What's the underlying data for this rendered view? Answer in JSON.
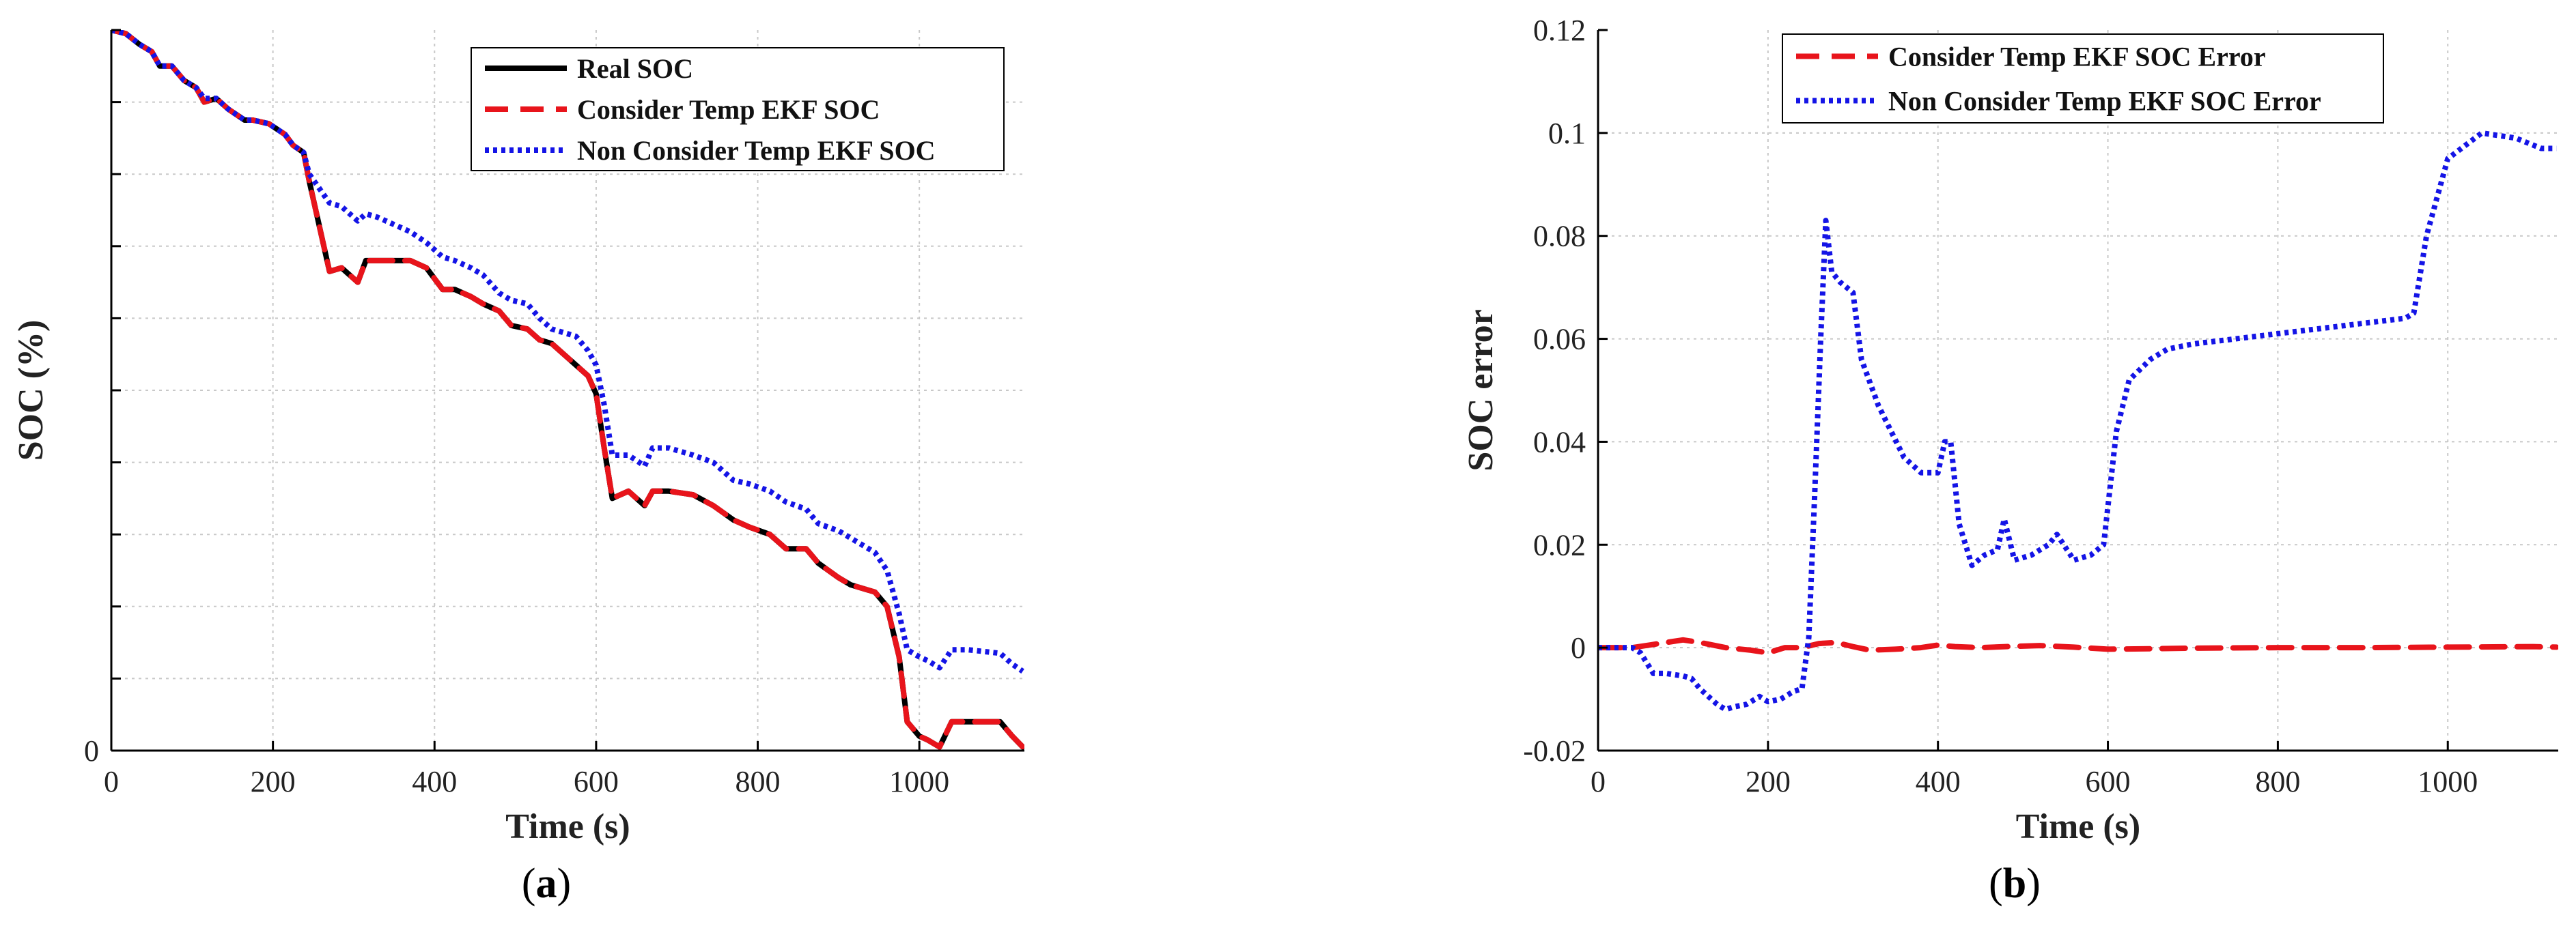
{
  "colors": {
    "real": "#000000",
    "consider": "#e8141b",
    "nonconsider": "#1414e6",
    "grid": "#c8c8c8",
    "axis": "#000000"
  },
  "chart_data": [
    {
      "id": "a",
      "type": "line",
      "caption": "a",
      "xlabel": "Time (s)",
      "ylabel": "SOC (%)",
      "xlim": [
        0,
        1130
      ],
      "ylim": [
        0,
        100
      ],
      "x_ticks": [
        0,
        200,
        400,
        600,
        800,
        1000
      ],
      "y_tick_labels": [
        {
          "value": 0,
          "label": "0"
        }
      ],
      "grid": true,
      "legend_position": "top-right",
      "series": [
        {
          "name": "Real SOC",
          "style": "solid",
          "color_key": "real",
          "x": [
            0,
            18,
            35,
            50,
            60,
            75,
            90,
            105,
            115,
            130,
            145,
            165,
            175,
            195,
            215,
            225,
            238,
            245,
            270,
            285,
            305,
            315,
            330,
            350,
            370,
            390,
            410,
            425,
            445,
            460,
            480,
            495,
            515,
            530,
            545,
            560,
            575,
            590,
            600,
            610,
            620,
            640,
            660,
            670,
            690,
            720,
            745,
            770,
            790,
            815,
            835,
            860,
            875,
            900,
            915,
            945,
            960,
            975,
            985,
            1000,
            1010,
            1025,
            1040,
            1060,
            1100,
            1115,
            1128
          ],
          "y": [
            100,
            99.5,
            98,
            97,
            95,
            95,
            93,
            92,
            90,
            90.5,
            89,
            87.5,
            87.5,
            87,
            85.5,
            84,
            83,
            79,
            66.5,
            67,
            65,
            68,
            68,
            68,
            68,
            67,
            64,
            64,
            63,
            62,
            61,
            59,
            58.5,
            57,
            56.5,
            55,
            53.5,
            52,
            49.5,
            42,
            35,
            36,
            34,
            36,
            36,
            35.5,
            34,
            32,
            31,
            30,
            28,
            28,
            26,
            24,
            23,
            22,
            20,
            13,
            4,
            2,
            1.5,
            0.5,
            4,
            4,
            4,
            2,
            0.5
          ]
        },
        {
          "name": "Consider Temp EKF SOC",
          "style": "dashed",
          "color_key": "consider",
          "x": [
            0,
            18,
            35,
            50,
            60,
            75,
            90,
            105,
            115,
            130,
            145,
            165,
            175,
            195,
            215,
            225,
            238,
            245,
            270,
            285,
            305,
            315,
            330,
            350,
            370,
            390,
            410,
            425,
            445,
            460,
            480,
            495,
            515,
            530,
            545,
            560,
            575,
            590,
            600,
            610,
            620,
            640,
            660,
            670,
            690,
            720,
            745,
            770,
            790,
            815,
            835,
            860,
            875,
            900,
            915,
            945,
            960,
            975,
            985,
            1000,
            1010,
            1025,
            1040,
            1060,
            1100,
            1115,
            1128
          ],
          "y": [
            100,
            99.5,
            98,
            97,
            95,
            95,
            93,
            92,
            90,
            90.5,
            89,
            87.5,
            87.5,
            87,
            85.5,
            84,
            83,
            79,
            66.5,
            67,
            65,
            68,
            68,
            68,
            68,
            67,
            64,
            64,
            63,
            62,
            61,
            59,
            58.5,
            57,
            56.5,
            55,
            53.5,
            52,
            49.5,
            42,
            35,
            36,
            34,
            36,
            36,
            35.5,
            34,
            32,
            31,
            30,
            28,
            28,
            26,
            24,
            23,
            22,
            20,
            13,
            4,
            2,
            1.5,
            0.5,
            4,
            4,
            4,
            2,
            0.5
          ]
        },
        {
          "name": "Non Consider Temp EKF SOC",
          "style": "dotted",
          "color_key": "nonconsider",
          "x": [
            0,
            18,
            35,
            50,
            60,
            75,
            90,
            105,
            115,
            130,
            145,
            165,
            175,
            195,
            215,
            225,
            238,
            245,
            270,
            285,
            305,
            315,
            330,
            350,
            370,
            390,
            410,
            425,
            445,
            460,
            480,
            495,
            515,
            530,
            545,
            560,
            575,
            590,
            600,
            610,
            620,
            640,
            660,
            670,
            690,
            720,
            745,
            770,
            790,
            815,
            835,
            860,
            875,
            900,
            915,
            945,
            960,
            975,
            985,
            1000,
            1010,
            1025,
            1040,
            1060,
            1100,
            1115,
            1128
          ],
          "y": [
            100,
            99.5,
            98,
            97,
            95,
            95,
            93,
            92,
            90.5,
            90.5,
            89,
            87.5,
            87.5,
            87,
            85.5,
            84,
            83,
            80,
            76,
            75.5,
            73.5,
            74.5,
            74,
            73,
            72,
            70.5,
            68.5,
            68,
            67,
            66,
            63.5,
            62.5,
            62,
            60,
            58.5,
            58,
            57.5,
            55.5,
            53.5,
            48,
            41,
            41,
            39.5,
            42,
            42,
            41,
            40,
            37.5,
            37,
            36,
            34.5,
            33.5,
            31.5,
            30.5,
            29.5,
            27.5,
            25,
            19,
            14,
            13,
            12.5,
            11.5,
            14,
            14,
            13.5,
            12,
            11
          ]
        }
      ]
    },
    {
      "id": "b",
      "type": "line",
      "caption": "b",
      "xlabel": "Time (s)",
      "ylabel": "SOC error",
      "xlim": [
        0,
        1130
      ],
      "ylim": [
        -0.02,
        0.12
      ],
      "x_ticks": [
        0,
        200,
        400,
        600,
        800,
        1000
      ],
      "y_ticks": [
        -0.02,
        0,
        0.02,
        0.04,
        0.06,
        0.08,
        0.1,
        0.12
      ],
      "y_tick_labels": [
        "-0.02",
        "0",
        "0.02",
        "0.04",
        "0.06",
        "0.08",
        "0.1",
        "0.12"
      ],
      "grid": true,
      "legend_position": "top-right",
      "series": [
        {
          "name": "Consider Temp EKF SOC Error",
          "style": "dashed",
          "color_key": "consider",
          "x": [
            0,
            40,
            60,
            80,
            100,
            120,
            150,
            180,
            200,
            220,
            240,
            260,
            280,
            300,
            320,
            350,
            380,
            400,
            420,
            450,
            480,
            520,
            560,
            600,
            650,
            700,
            800,
            900,
            1000,
            1100,
            1128
          ],
          "y": [
            0,
            0,
            0.0005,
            0.001,
            0.0015,
            0.001,
            0,
            -0.0005,
            -0.001,
            0,
            0,
            0.0008,
            0.001,
            0.0002,
            -0.0005,
            -0.0003,
            0,
            0.0005,
            0.0002,
            0,
            0.0002,
            0.0004,
            0.0001,
            -0.0003,
            -0.0002,
            -0.0001,
            0,
            0,
            0.0001,
            0.0002,
            0.0001
          ]
        },
        {
          "name": "Non Consider Temp EKF SOC Error",
          "style": "dotted",
          "color_key": "nonconsider",
          "x": [
            0,
            40,
            50,
            65,
            80,
            100,
            110,
            120,
            140,
            150,
            160,
            175,
            190,
            200,
            215,
            230,
            240,
            248,
            255,
            262,
            268,
            275,
            285,
            300,
            310,
            330,
            360,
            380,
            395,
            400,
            408,
            415,
            425,
            440,
            455,
            470,
            478,
            490,
            510,
            530,
            540,
            560,
            580,
            595,
            610,
            625,
            650,
            670,
            700,
            750,
            800,
            850,
            900,
            950,
            960,
            975,
            1000,
            1040,
            1080,
            1110,
            1128
          ],
          "y": [
            0,
            0,
            -0.001,
            -0.005,
            -0.005,
            -0.0055,
            -0.006,
            -0.008,
            -0.011,
            -0.012,
            -0.0115,
            -0.011,
            -0.0095,
            -0.0105,
            -0.01,
            -0.0085,
            -0.008,
            0.002,
            0.03,
            0.06,
            0.083,
            0.073,
            0.071,
            0.069,
            0.056,
            0.047,
            0.037,
            0.034,
            0.034,
            0.034,
            0.04,
            0.04,
            0.024,
            0.016,
            0.018,
            0.019,
            0.025,
            0.017,
            0.018,
            0.02,
            0.022,
            0.017,
            0.018,
            0.02,
            0.042,
            0.052,
            0.056,
            0.058,
            0.059,
            0.06,
            0.061,
            0.062,
            0.063,
            0.064,
            0.065,
            0.08,
            0.095,
            0.1,
            0.099,
            0.097,
            0.097
          ]
        }
      ]
    }
  ]
}
